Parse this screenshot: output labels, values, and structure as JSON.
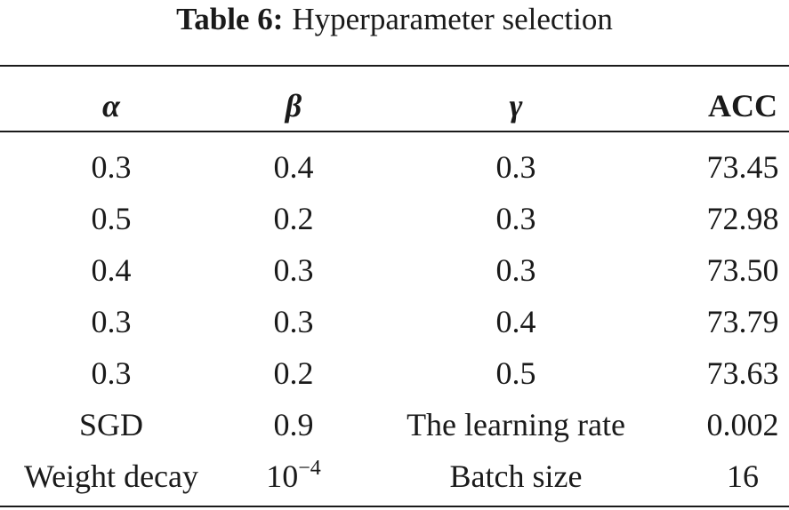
{
  "caption": {
    "label": "Table 6:",
    "text": "Hyperparameter selection"
  },
  "table": {
    "header": [
      "α",
      "β",
      "γ",
      "ACC"
    ],
    "rows": [
      [
        "0.3",
        "0.4",
        "0.3",
        "73.45"
      ],
      [
        "0.5",
        "0.2",
        "0.3",
        "72.98"
      ],
      [
        "0.4",
        "0.3",
        "0.3",
        "73.50"
      ],
      [
        "0.3",
        "0.3",
        "0.4",
        "73.79"
      ],
      [
        "0.3",
        "0.2",
        "0.5",
        "73.63"
      ],
      [
        "SGD",
        "0.9",
        "The learning rate",
        "0.002"
      ],
      [
        "Weight decay",
        {
          "base": "10",
          "exponent": "−4"
        },
        "Batch size",
        "16"
      ]
    ]
  }
}
